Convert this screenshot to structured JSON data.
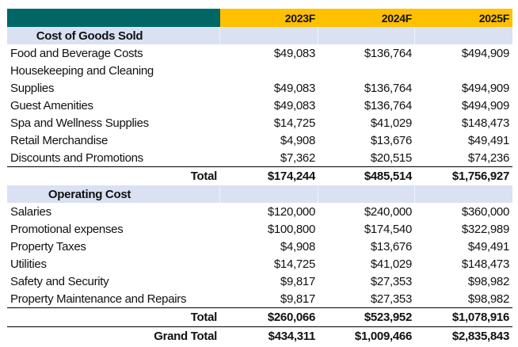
{
  "header": {
    "columns": [
      "",
      "2023F",
      "2024F",
      "2025F"
    ]
  },
  "sections": [
    {
      "title": "Cost of Goods Sold",
      "rows": [
        {
          "label": "Food and Beverage Costs",
          "values": [
            "$49,083",
            "$136,764",
            "$494,909"
          ]
        },
        {
          "label": "Housekeeping and Cleaning",
          "values": [
            "",
            "",
            ""
          ]
        },
        {
          "label": "Supplies",
          "values": [
            "$49,083",
            "$136,764",
            "$494,909"
          ]
        },
        {
          "label": "Guest Amenities",
          "values": [
            "$49,083",
            "$136,764",
            "$494,909"
          ]
        },
        {
          "label": "Spa and Wellness Supplies",
          "values": [
            "$14,725",
            "$41,029",
            "$148,473"
          ]
        },
        {
          "label": "Retail Merchandise",
          "values": [
            "$4,908",
            "$13,676",
            "$49,491"
          ]
        },
        {
          "label": "Discounts and Promotions",
          "values": [
            "$7,362",
            "$20,515",
            "$74,236"
          ]
        }
      ],
      "total": {
        "label": "Total",
        "values": [
          "$174,244",
          "$485,514",
          "$1,756,927"
        ]
      }
    },
    {
      "title": "Operating Cost",
      "rows": [
        {
          "label": "Salaries",
          "values": [
            "$120,000",
            "$240,000",
            "$360,000"
          ]
        },
        {
          "label": "Promotional expenses",
          "values": [
            "$100,800",
            "$174,540",
            "$322,989"
          ]
        },
        {
          "label": "Property Taxes",
          "values": [
            "$4,908",
            "$13,676",
            "$49,491"
          ]
        },
        {
          "label": "Utilities",
          "values": [
            "$14,725",
            "$41,029",
            "$148,473"
          ]
        },
        {
          "label": "Safety and Security",
          "values": [
            "$9,817",
            "$27,353",
            "$98,982"
          ]
        },
        {
          "label": "Property Maintenance and Repairs",
          "values": [
            "$9,817",
            "$27,353",
            "$98,982"
          ]
        }
      ],
      "total": {
        "label": "Total",
        "values": [
          "$260,066",
          "$523,952",
          "$1,078,916"
        ]
      }
    }
  ],
  "grand_total": {
    "label": "Grand Total",
    "values": [
      "$434,311",
      "$1,009,466",
      "$2,835,843"
    ]
  },
  "colors": {
    "header_label_bg": "#006666",
    "header_year_bg": "#ffc000",
    "section_bg": "#d9e1f2"
  }
}
